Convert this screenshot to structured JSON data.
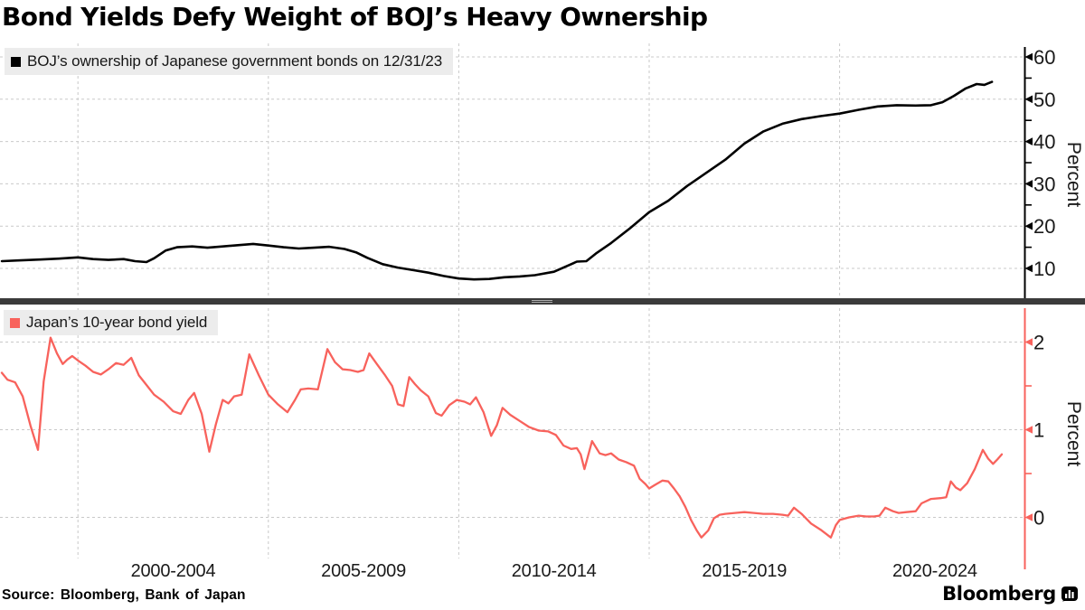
{
  "header": {
    "title": "Bond Yields Defy Weight of BOJ’s Heavy Ownership"
  },
  "footer": {
    "source": "Source: Bloomberg, Bank of Japan",
    "brand": "Bloomberg"
  },
  "colors": {
    "black_series": "#000000",
    "red_series": "#f8625c",
    "grid": "#c9c9c9",
    "legend_bg": "#ececec",
    "divider": "#3b3b3b",
    "text": "#1a1a1a"
  },
  "chart_data": [
    {
      "type": "line",
      "panel": "top",
      "legend": "BOJ’s ownership of Japanese government bonds on 12/31/23",
      "series_color": "#000000",
      "ylabel": "Percent",
      "y_ticks_major": [
        10,
        20,
        30,
        40,
        50,
        60
      ],
      "y_ticks_minor": [
        15,
        25,
        35,
        45,
        55
      ],
      "ylim": [
        3,
        62.4
      ],
      "x_gridline_years": [
        2000,
        2005,
        2010,
        2015,
        2020
      ],
      "x_range_years": [
        1998.0,
        2025.0
      ],
      "grid": "on",
      "legend_position": "top-left",
      "points": [
        [
          1998.0,
          11.7
        ],
        [
          1998.5,
          11.9
        ],
        [
          1999.0,
          12.1
        ],
        [
          1999.5,
          12.3
        ],
        [
          2000.0,
          12.6
        ],
        [
          2000.4,
          12.2
        ],
        [
          2000.8,
          12.0
        ],
        [
          2001.2,
          12.2
        ],
        [
          2001.5,
          11.7
        ],
        [
          2001.8,
          11.5
        ],
        [
          2002.0,
          12.4
        ],
        [
          2002.3,
          14.2
        ],
        [
          2002.6,
          15.0
        ],
        [
          2003.0,
          15.2
        ],
        [
          2003.4,
          14.9
        ],
        [
          2003.8,
          15.2
        ],
        [
          2004.2,
          15.5
        ],
        [
          2004.6,
          15.8
        ],
        [
          2005.0,
          15.4
        ],
        [
          2005.4,
          15.0
        ],
        [
          2005.8,
          14.7
        ],
        [
          2006.2,
          14.9
        ],
        [
          2006.6,
          15.1
        ],
        [
          2007.0,
          14.6
        ],
        [
          2007.3,
          13.8
        ],
        [
          2007.6,
          12.5
        ],
        [
          2008.0,
          11.0
        ],
        [
          2008.4,
          10.2
        ],
        [
          2008.8,
          9.6
        ],
        [
          2009.2,
          9.0
        ],
        [
          2009.6,
          8.2
        ],
        [
          2010.0,
          7.6
        ],
        [
          2010.4,
          7.4
        ],
        [
          2010.8,
          7.5
        ],
        [
          2011.2,
          7.9
        ],
        [
          2011.6,
          8.1
        ],
        [
          2012.0,
          8.4
        ],
        [
          2012.5,
          9.2
        ],
        [
          2012.9,
          10.8
        ],
        [
          2013.1,
          11.6
        ],
        [
          2013.35,
          11.7
        ],
        [
          2013.6,
          13.5
        ],
        [
          2014.0,
          16.0
        ],
        [
          2014.5,
          19.5
        ],
        [
          2015.0,
          23.3
        ],
        [
          2015.5,
          26.0
        ],
        [
          2016.0,
          29.5
        ],
        [
          2016.5,
          32.6
        ],
        [
          2017.0,
          35.7
        ],
        [
          2017.5,
          39.5
        ],
        [
          2018.0,
          42.4
        ],
        [
          2018.5,
          44.2
        ],
        [
          2019.0,
          45.3
        ],
        [
          2019.5,
          46.0
        ],
        [
          2020.0,
          46.6
        ],
        [
          2020.5,
          47.5
        ],
        [
          2021.0,
          48.3
        ],
        [
          2021.5,
          48.6
        ],
        [
          2022.0,
          48.5
        ],
        [
          2022.4,
          48.6
        ],
        [
          2022.7,
          49.3
        ],
        [
          2023.0,
          50.8
        ],
        [
          2023.3,
          52.5
        ],
        [
          2023.6,
          53.6
        ],
        [
          2023.8,
          53.4
        ],
        [
          2024.0,
          54.1
        ]
      ]
    },
    {
      "type": "line",
      "panel": "bottom",
      "legend": "Japan’s 10-year bond yield",
      "series_color": "#f8625c",
      "ylabel": "Percent",
      "y_ticks_major": [
        0,
        1,
        2
      ],
      "y_ticks_minor": [
        0.5,
        1.5
      ],
      "ylim": [
        -0.59,
        2.39
      ],
      "x_gridline_years": [
        2000,
        2005,
        2010,
        2015,
        2020
      ],
      "x_range_years": [
        1998.0,
        2025.0
      ],
      "grid": "on",
      "legend_position": "top-left",
      "x_labels": [
        "2000-2004",
        "2005-2009",
        "2010-2014",
        "2015-2019",
        "2020-2024"
      ],
      "points": [
        [
          1998.0,
          1.65
        ],
        [
          1998.15,
          1.57
        ],
        [
          1998.35,
          1.54
        ],
        [
          1998.55,
          1.38
        ],
        [
          1998.75,
          1.05
        ],
        [
          1998.95,
          0.77
        ],
        [
          1999.1,
          1.55
        ],
        [
          1999.28,
          2.05
        ],
        [
          1999.45,
          1.87
        ],
        [
          1999.6,
          1.75
        ],
        [
          1999.72,
          1.8
        ],
        [
          1999.85,
          1.84
        ],
        [
          2000.0,
          1.79
        ],
        [
          2000.2,
          1.73
        ],
        [
          2000.4,
          1.66
        ],
        [
          2000.6,
          1.63
        ],
        [
          2000.8,
          1.69
        ],
        [
          2001.0,
          1.76
        ],
        [
          2001.2,
          1.74
        ],
        [
          2001.4,
          1.82
        ],
        [
          2001.6,
          1.62
        ],
        [
          2001.8,
          1.51
        ],
        [
          2002.0,
          1.4
        ],
        [
          2002.25,
          1.32
        ],
        [
          2002.5,
          1.21
        ],
        [
          2002.7,
          1.18
        ],
        [
          2002.9,
          1.34
        ],
        [
          2003.05,
          1.42
        ],
        [
          2003.25,
          1.18
        ],
        [
          2003.45,
          0.75
        ],
        [
          2003.62,
          1.06
        ],
        [
          2003.8,
          1.34
        ],
        [
          2003.95,
          1.3
        ],
        [
          2004.1,
          1.38
        ],
        [
          2004.3,
          1.4
        ],
        [
          2004.5,
          1.86
        ],
        [
          2004.75,
          1.62
        ],
        [
          2005.0,
          1.4
        ],
        [
          2005.25,
          1.29
        ],
        [
          2005.5,
          1.2
        ],
        [
          2005.7,
          1.34
        ],
        [
          2005.85,
          1.46
        ],
        [
          2006.05,
          1.47
        ],
        [
          2006.3,
          1.46
        ],
        [
          2006.55,
          1.92
        ],
        [
          2006.75,
          1.77
        ],
        [
          2006.95,
          1.69
        ],
        [
          2007.15,
          1.68
        ],
        [
          2007.35,
          1.66
        ],
        [
          2007.5,
          1.68
        ],
        [
          2007.65,
          1.87
        ],
        [
          2007.85,
          1.75
        ],
        [
          2008.05,
          1.63
        ],
        [
          2008.25,
          1.5
        ],
        [
          2008.4,
          1.29
        ],
        [
          2008.55,
          1.27
        ],
        [
          2008.7,
          1.6
        ],
        [
          2008.85,
          1.52
        ],
        [
          2009.0,
          1.45
        ],
        [
          2009.2,
          1.38
        ],
        [
          2009.4,
          1.19
        ],
        [
          2009.55,
          1.16
        ],
        [
          2009.75,
          1.28
        ],
        [
          2009.95,
          1.34
        ],
        [
          2010.15,
          1.32
        ],
        [
          2010.3,
          1.29
        ],
        [
          2010.45,
          1.37
        ],
        [
          2010.65,
          1.2
        ],
        [
          2010.85,
          0.93
        ],
        [
          2011.0,
          1.05
        ],
        [
          2011.15,
          1.25
        ],
        [
          2011.35,
          1.17
        ],
        [
          2011.6,
          1.1
        ],
        [
          2011.85,
          1.03
        ],
        [
          2012.1,
          0.99
        ],
        [
          2012.35,
          0.98
        ],
        [
          2012.55,
          0.94
        ],
        [
          2012.75,
          0.82
        ],
        [
          2012.95,
          0.78
        ],
        [
          2013.1,
          0.79
        ],
        [
          2013.2,
          0.72
        ],
        [
          2013.3,
          0.55
        ],
        [
          2013.5,
          0.87
        ],
        [
          2013.7,
          0.73
        ],
        [
          2013.85,
          0.71
        ],
        [
          2014.0,
          0.73
        ],
        [
          2014.2,
          0.66
        ],
        [
          2014.4,
          0.63
        ],
        [
          2014.6,
          0.59
        ],
        [
          2014.75,
          0.44
        ],
        [
          2014.9,
          0.38
        ],
        [
          2015.0,
          0.33
        ],
        [
          2015.15,
          0.37
        ],
        [
          2015.35,
          0.42
        ],
        [
          2015.5,
          0.41
        ],
        [
          2015.65,
          0.33
        ],
        [
          2015.8,
          0.24
        ],
        [
          2015.95,
          0.12
        ],
        [
          2016.1,
          -0.03
        ],
        [
          2016.25,
          -0.15
        ],
        [
          2016.37,
          -0.23
        ],
        [
          2016.55,
          -0.15
        ],
        [
          2016.7,
          -0.01
        ],
        [
          2016.85,
          0.03
        ],
        [
          2017.0,
          0.04
        ],
        [
          2017.25,
          0.05
        ],
        [
          2017.5,
          0.06
        ],
        [
          2017.75,
          0.05
        ],
        [
          2018.0,
          0.04
        ],
        [
          2018.25,
          0.04
        ],
        [
          2018.5,
          0.03
        ],
        [
          2018.65,
          0.02
        ],
        [
          2018.8,
          0.11
        ],
        [
          2019.0,
          0.04
        ],
        [
          2019.25,
          -0.07
        ],
        [
          2019.5,
          -0.14
        ],
        [
          2019.65,
          -0.19
        ],
        [
          2019.77,
          -0.23
        ],
        [
          2019.9,
          -0.09
        ],
        [
          2020.0,
          -0.03
        ],
        [
          2020.25,
          0.0
        ],
        [
          2020.5,
          0.02
        ],
        [
          2020.7,
          0.01
        ],
        [
          2020.9,
          0.01
        ],
        [
          2021.05,
          0.02
        ],
        [
          2021.2,
          0.11
        ],
        [
          2021.4,
          0.07
        ],
        [
          2021.55,
          0.05
        ],
        [
          2021.75,
          0.06
        ],
        [
          2022.0,
          0.07
        ],
        [
          2022.15,
          0.16
        ],
        [
          2022.4,
          0.21
        ],
        [
          2022.65,
          0.22
        ],
        [
          2022.8,
          0.23
        ],
        [
          2022.92,
          0.41
        ],
        [
          2023.05,
          0.34
        ],
        [
          2023.17,
          0.31
        ],
        [
          2023.35,
          0.39
        ],
        [
          2023.55,
          0.55
        ],
        [
          2023.76,
          0.77
        ],
        [
          2023.9,
          0.67
        ],
        [
          2024.03,
          0.61
        ],
        [
          2024.14,
          0.66
        ],
        [
          2024.26,
          0.72
        ]
      ]
    }
  ]
}
